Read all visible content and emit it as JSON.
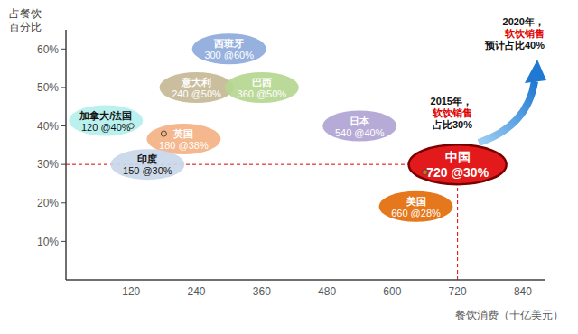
{
  "chart_data": {
    "type": "scatter",
    "x_label": "餐饮消费（十亿美元）",
    "y_label": "占餐饮百分比",
    "xlim": [
      0,
      880
    ],
    "xticks": [
      120,
      240,
      360,
      480,
      600,
      720,
      840
    ],
    "ylim": [
      0,
      65
    ],
    "yticks": [
      {
        "value": 10,
        "label": "10%"
      },
      {
        "value": 20,
        "label": "20%"
      },
      {
        "value": 30,
        "label": "30%"
      },
      {
        "value": 40,
        "label": "40%"
      },
      {
        "value": 50,
        "label": "50%"
      },
      {
        "value": 60,
        "label": "60%"
      }
    ],
    "grid": false,
    "points": [
      {
        "name": "西班牙",
        "x": 300,
        "y": 60,
        "label": "300 @60%",
        "color": "#8eaadb"
      },
      {
        "name": "意大利",
        "x": 240,
        "y": 50,
        "label": "240 @50%",
        "color": "#c5b996"
      },
      {
        "name": "巴西",
        "x": 360,
        "y": 50,
        "label": "360 @50%",
        "color": "#b5d68f"
      },
      {
        "name": "加拿大/法国",
        "x": 120,
        "y": 40,
        "label": "120 @40%",
        "color": "#b4f0ee"
      },
      {
        "name": "英国",
        "x": 180,
        "y": 38,
        "label": "180 @38%",
        "color": "#f4b183"
      },
      {
        "name": "印度",
        "x": 150,
        "y": 30,
        "label": "150 @30%",
        "color": "#c9d7ea"
      },
      {
        "name": "日本",
        "x": 540,
        "y": 40,
        "label": "540 @40%",
        "color": "#b0a3d3"
      },
      {
        "name": "美国",
        "x": 660,
        "y": 28,
        "label": "660 @28%",
        "color": "#e36c0a"
      },
      {
        "name": "中国",
        "x": 720,
        "y": 30,
        "label": "720 @30%",
        "color": "#e31a1c"
      }
    ],
    "annotations": [
      {
        "text": "2015年，软饮销售占比30%",
        "highlight": "软饮销售"
      },
      {
        "text": "2020年，软饮销售预计占比40%",
        "highlight": "软饮销售"
      }
    ]
  }
}
